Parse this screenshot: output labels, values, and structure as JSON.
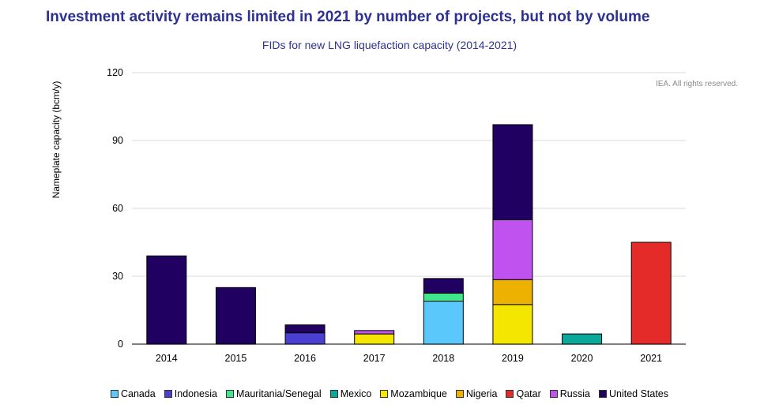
{
  "header": {
    "title": "Investment activity remains limited in 2021 by number of projects, but not by volume",
    "subtitle": "FIDs for new LNG liquefaction capacity (2014-2021)",
    "credit": "IEA. All rights reserved."
  },
  "chart_data": {
    "type": "bar",
    "stacked": true,
    "categories": [
      "2014",
      "2015",
      "2016",
      "2017",
      "2018",
      "2019",
      "2020",
      "2021"
    ],
    "ylabel": "Nameplate capacity (bcm/y)",
    "xlabel": "",
    "ylim": [
      0,
      120
    ],
    "yticks": [
      "0",
      "30",
      "60",
      "90",
      "120"
    ],
    "grid": true,
    "legend_position": "bottom",
    "series": [
      {
        "name": "Canada",
        "color": "#5ac8fa",
        "values": [
          0,
          0,
          0,
          0,
          19,
          0,
          0,
          0
        ]
      },
      {
        "name": "Indonesia",
        "color": "#4b3fd1",
        "values": [
          0,
          0,
          5,
          0,
          0,
          0,
          0,
          0
        ]
      },
      {
        "name": "Mauritania/Senegal",
        "color": "#3ee88a",
        "values": [
          0,
          0,
          0,
          0,
          3.5,
          0,
          0,
          0
        ]
      },
      {
        "name": "Mexico",
        "color": "#0aa89a",
        "values": [
          0,
          0,
          0,
          0,
          0,
          0,
          4.5,
          0
        ]
      },
      {
        "name": "Mozambique",
        "color": "#f5e600",
        "values": [
          0,
          0,
          0,
          4.5,
          0,
          17.5,
          0,
          0
        ]
      },
      {
        "name": "Nigeria",
        "color": "#edb100",
        "values": [
          0,
          0,
          0,
          0,
          0,
          11,
          0,
          0
        ]
      },
      {
        "name": "Qatar",
        "color": "#e52a2a",
        "values": [
          0,
          0,
          0,
          0,
          0,
          0,
          0,
          45
        ]
      },
      {
        "name": "Russia",
        "color": "#c052f0",
        "values": [
          0,
          0,
          0,
          1.5,
          0,
          26.5,
          0,
          0
        ]
      },
      {
        "name": "United States",
        "color": "#200060",
        "values": [
          39,
          25,
          3.5,
          0,
          6.5,
          42,
          0,
          0
        ]
      }
    ]
  }
}
